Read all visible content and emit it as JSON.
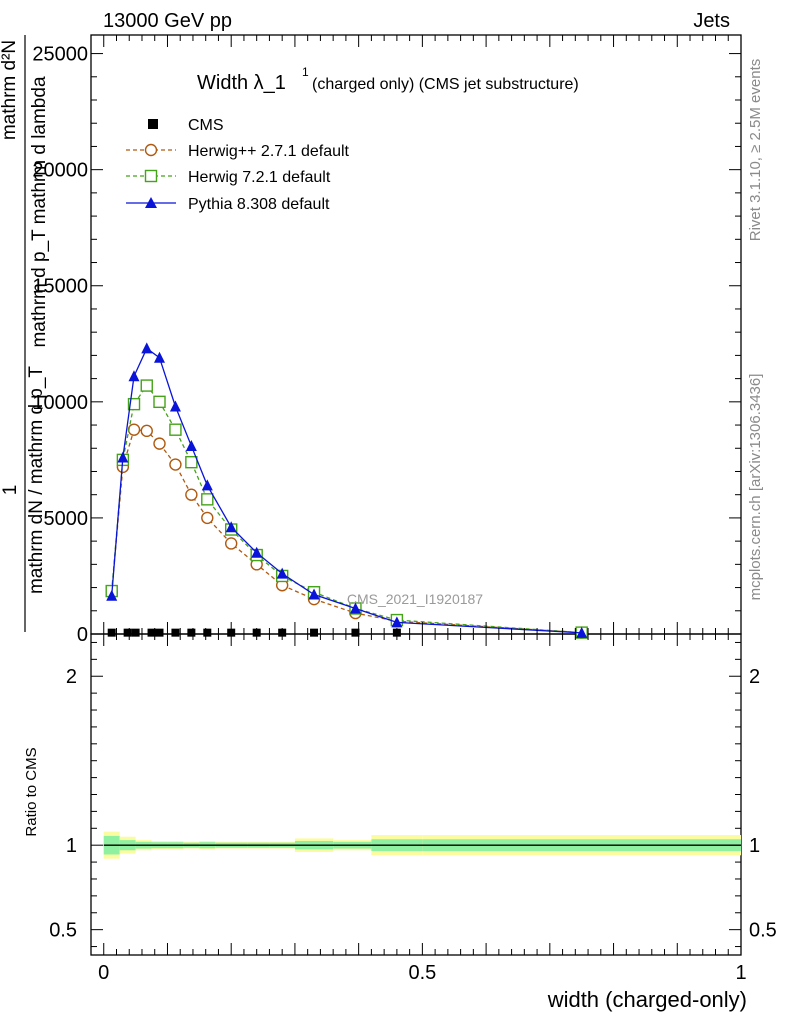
{
  "header": {
    "left": "13000 GeV pp",
    "right": "Jets"
  },
  "side_labels": {
    "rivet": "Rivet 3.1.10, ≥ 2.5M events",
    "mcplots": "mcplots.cern.ch [arXiv:1306.3436]"
  },
  "chart_data": [
    {
      "type": "line",
      "title": "Width λ_1",
      "title_sup": "1",
      "subtitle": "(charged only) (CMS jet substructure)",
      "ylabel_top": "mathrm d²N",
      "ylabel_mid": "mathrm d p_T mathrm d lambda",
      "ylabel_num": "1",
      "ylabel_den": "mathrm dN / mathrm d p_T",
      "watermark": "CMS_2021_I1920187",
      "xlim": [
        -0.02,
        1.0
      ],
      "ylim": [
        0,
        25800
      ],
      "yticks": [
        0,
        5000,
        10000,
        15000,
        20000,
        25000
      ],
      "ytick_labels": [
        "0",
        "5000",
        "10000",
        "15000",
        "20000",
        "25000"
      ],
      "legend_position": "top-left",
      "series": [
        {
          "name": "CMS",
          "color": "#000000",
          "marker": "square-filled",
          "x": [
            0.0125,
            0.0375,
            0.05,
            0.075,
            0.0875,
            0.1125,
            0.1375,
            0.1625,
            0.2,
            0.24,
            0.28,
            0.33,
            0.395,
            0.46,
            0.75
          ],
          "y": [
            15,
            15,
            15,
            15,
            15,
            15,
            15,
            15,
            15,
            15,
            15,
            15,
            15,
            15,
            15
          ]
        },
        {
          "name": "Herwig++ 2.7.1 default",
          "color": "#b05a10",
          "marker": "circle-open",
          "dash": "4,3",
          "x": [
            0.0125,
            0.03,
            0.0475,
            0.0675,
            0.0875,
            0.1125,
            0.1375,
            0.1625,
            0.2,
            0.24,
            0.28,
            0.33,
            0.395,
            0.46,
            0.75
          ],
          "y": [
            1800,
            7200,
            8800,
            8750,
            8200,
            7300,
            6000,
            5000,
            3900,
            3000,
            2100,
            1500,
            900,
            550,
            60
          ]
        },
        {
          "name": "Herwig 7.2.1 default",
          "color": "#44a318",
          "marker": "square-open",
          "dash": "4,3",
          "x": [
            0.0125,
            0.03,
            0.0475,
            0.0675,
            0.0875,
            0.1125,
            0.1375,
            0.1625,
            0.2,
            0.24,
            0.28,
            0.33,
            0.395,
            0.46,
            0.75
          ],
          "y": [
            1850,
            7500,
            9900,
            10700,
            10000,
            8800,
            7400,
            5800,
            4500,
            3400,
            2500,
            1800,
            1100,
            600,
            60
          ]
        },
        {
          "name": "Pythia 8.308 default",
          "color": "#0a14d8",
          "marker": "triangle-filled",
          "x": [
            0.0125,
            0.03,
            0.0475,
            0.0675,
            0.0875,
            0.1125,
            0.1375,
            0.1625,
            0.2,
            0.24,
            0.28,
            0.33,
            0.395,
            0.46,
            0.75
          ],
          "y": [
            1650,
            7600,
            11100,
            12300,
            11900,
            9800,
            8100,
            6400,
            4600,
            3500,
            2600,
            1700,
            1100,
            500,
            50
          ]
        }
      ]
    },
    {
      "type": "line",
      "ylabel": "Ratio to CMS",
      "xlabel": "width (charged-only)",
      "xlim": [
        -0.02,
        1.0
      ],
      "ylim": [
        0.35,
        2.25
      ],
      "xticks": [
        0,
        0.5,
        1
      ],
      "xtick_labels": [
        "0",
        "0.5",
        "1"
      ],
      "yticks": [
        0.5,
        1,
        2
      ],
      "ytick_labels": [
        "0.5",
        "1",
        "2"
      ],
      "band_edges": [
        0.0,
        0.025,
        0.05,
        0.075,
        0.1,
        0.125,
        0.15,
        0.175,
        0.225,
        0.26,
        0.3,
        0.36,
        0.42,
        0.5,
        1.0
      ],
      "band_inner": [
        0.055,
        0.03,
        0.02,
        0.018,
        0.018,
        0.015,
        0.018,
        0.015,
        0.015,
        0.015,
        0.025,
        0.02,
        0.035,
        0.035
      ],
      "band_outer": [
        0.08,
        0.05,
        0.03,
        0.025,
        0.025,
        0.02,
        0.025,
        0.02,
        0.02,
        0.02,
        0.04,
        0.03,
        0.06,
        0.06
      ]
    }
  ]
}
